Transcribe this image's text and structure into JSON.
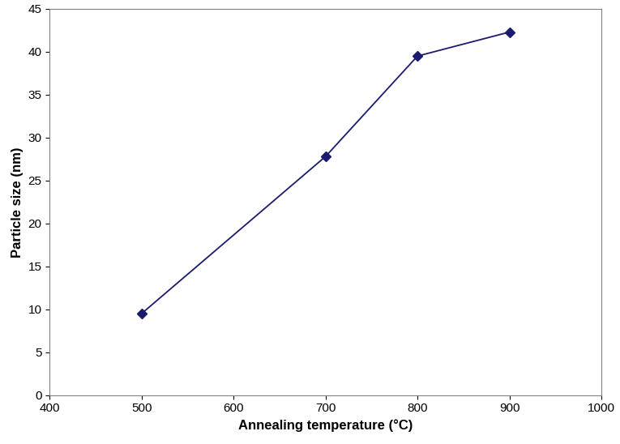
{
  "chart_data": {
    "type": "line",
    "x_label": "Annealing temperature (°C)",
    "y_label": "Particle size (nm)",
    "x": [
      500,
      700,
      800,
      900
    ],
    "values": [
      9.5,
      27.8,
      39.5,
      42.3
    ],
    "color": "#1a1a6e",
    "marker": "diamond",
    "line_style": "solid",
    "xlim": [
      400,
      1000
    ],
    "xticks": [
      400,
      500,
      600,
      700,
      800,
      900,
      1000
    ],
    "ylim": [
      0,
      45
    ],
    "yticks": [
      0,
      5,
      10,
      15,
      20,
      25,
      30,
      35,
      40,
      45
    ],
    "grid": false
  }
}
